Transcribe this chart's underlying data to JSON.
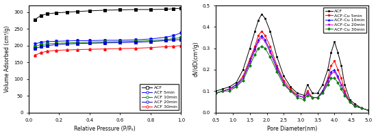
{
  "left_chart": {
    "xlabel": "Relative Pressure (P/Pₒ)",
    "ylabel": "Volume Adsorbed (cm³/g)",
    "xlim": [
      0.0,
      1.0
    ],
    "ylim": [
      0,
      320
    ],
    "yticks": [
      0,
      50,
      100,
      150,
      200,
      250,
      300
    ],
    "xticks": [
      0.0,
      0.2,
      0.4,
      0.6,
      0.8,
      1.0
    ],
    "series": [
      {
        "label": "ACF",
        "color": "black",
        "open_marker": "s",
        "closed_marker": "s",
        "x_ads": [
          0.04,
          0.08,
          0.12,
          0.18,
          0.25,
          0.32,
          0.4,
          0.5,
          0.6,
          0.7,
          0.8,
          0.9,
          0.95,
          1.0
        ],
        "y_ads": [
          278,
          290,
          295,
          298,
          300,
          302,
          304,
          306,
          307,
          308,
          308,
          309,
          310,
          312
        ],
        "x_des": [
          0.04,
          0.08,
          0.12,
          0.18,
          0.25,
          0.32,
          0.4,
          0.5,
          0.6,
          0.7,
          0.8,
          0.9,
          0.95,
          1.0
        ],
        "y_des": [
          278,
          290,
          295,
          298,
          300,
          302,
          304,
          306,
          307,
          308,
          308,
          309,
          310,
          312
        ]
      },
      {
        "label": "ACF 5min",
        "color": "blue",
        "open_marker": "o",
        "closed_marker": "v",
        "x_ads": [
          0.04,
          0.08,
          0.12,
          0.18,
          0.25,
          0.32,
          0.4,
          0.5,
          0.6,
          0.7,
          0.8,
          0.9,
          0.95,
          1.0
        ],
        "y_ads": [
          205,
          210,
          212,
          213,
          214,
          215,
          215,
          216,
          216,
          217,
          220,
          225,
          230,
          238
        ],
        "x_des": [
          0.04,
          0.08,
          0.12,
          0.18,
          0.25,
          0.32,
          0.4,
          0.5,
          0.6,
          0.7,
          0.8,
          0.9,
          0.95,
          1.0
        ],
        "y_des": [
          205,
          210,
          212,
          213,
          214,
          215,
          215,
          216,
          216,
          217,
          220,
          225,
          230,
          238
        ]
      },
      {
        "label": "ACF 10min",
        "color": "green",
        "open_marker": "o",
        "closed_marker": "s",
        "x_ads": [
          0.04,
          0.08,
          0.12,
          0.18,
          0.25,
          0.32,
          0.4,
          0.5,
          0.6,
          0.7,
          0.8,
          0.9,
          0.95,
          1.0
        ],
        "y_ads": [
          198,
          203,
          205,
          207,
          208,
          209,
          210,
          211,
          212,
          213,
          215,
          218,
          221,
          224
        ],
        "x_des": [
          0.04,
          0.08,
          0.12,
          0.18,
          0.25,
          0.32,
          0.4,
          0.5,
          0.6,
          0.7,
          0.8,
          0.9,
          0.95,
          1.0
        ],
        "y_des": [
          198,
          203,
          205,
          207,
          208,
          209,
          210,
          211,
          212,
          213,
          215,
          218,
          221,
          224
        ]
      },
      {
        "label": "ACF 20min",
        "color": "#0000cc",
        "open_marker": "o",
        "closed_marker": "s",
        "x_ads": [
          0.04,
          0.08,
          0.12,
          0.18,
          0.25,
          0.32,
          0.4,
          0.5,
          0.6,
          0.7,
          0.8,
          0.9,
          0.95,
          1.0
        ],
        "y_ads": [
          191,
          197,
          200,
          203,
          205,
          206,
          207,
          208,
          209,
          210,
          212,
          215,
          217,
          218
        ],
        "x_des": [
          0.04,
          0.08,
          0.12,
          0.18,
          0.25,
          0.32,
          0.4,
          0.5,
          0.6,
          0.7,
          0.8,
          0.9,
          0.95,
          1.0
        ],
        "y_des": [
          191,
          197,
          200,
          203,
          205,
          206,
          207,
          208,
          209,
          210,
          212,
          215,
          217,
          218
        ]
      },
      {
        "label": "ACF 30min",
        "color": "red",
        "open_marker": "o",
        "closed_marker": "^",
        "x_ads": [
          0.04,
          0.08,
          0.12,
          0.18,
          0.25,
          0.32,
          0.4,
          0.5,
          0.6,
          0.7,
          0.8,
          0.9,
          0.95,
          1.0
        ],
        "y_ads": [
          171,
          179,
          183,
          186,
          187,
          188,
          189,
          190,
          191,
          192,
          194,
          197,
          198,
          200
        ],
        "x_des": [
          0.04,
          0.08,
          0.12,
          0.18,
          0.25,
          0.32,
          0.4,
          0.5,
          0.6,
          0.7,
          0.8,
          0.9,
          0.95,
          1.0
        ],
        "y_des": [
          171,
          179,
          183,
          186,
          187,
          188,
          189,
          190,
          191,
          192,
          194,
          197,
          198,
          200
        ]
      }
    ]
  },
  "right_chart": {
    "xlabel": "Pore Diameter(nm)",
    "ylabel": "dV/dD(cm³/g)",
    "xlim": [
      0.5,
      5.0
    ],
    "ylim": [
      0.0,
      0.5
    ],
    "yticks": [
      0.0,
      0.1,
      0.2,
      0.3,
      0.4,
      0.5
    ],
    "xticks": [
      0.5,
      1.0,
      1.5,
      2.0,
      2.5,
      3.0,
      3.5,
      4.0,
      4.5,
      5.0
    ],
    "series": [
      {
        "label": "ACF",
        "color": "black",
        "marker": "s",
        "x": [
          0.5,
          0.7,
          0.9,
          1.1,
          1.3,
          1.5,
          1.65,
          1.75,
          1.85,
          1.95,
          2.1,
          2.3,
          2.5,
          2.7,
          2.9,
          3.1,
          3.2,
          3.35,
          3.5,
          3.65,
          3.8,
          3.9,
          4.0,
          4.1,
          4.2,
          4.3,
          4.45,
          4.6,
          4.8,
          5.0
        ],
        "y": [
          0.1,
          0.11,
          0.12,
          0.14,
          0.2,
          0.3,
          0.38,
          0.43,
          0.46,
          0.44,
          0.38,
          0.26,
          0.17,
          0.12,
          0.09,
          0.08,
          0.13,
          0.09,
          0.09,
          0.13,
          0.2,
          0.28,
          0.33,
          0.28,
          0.22,
          0.13,
          0.06,
          0.04,
          0.02,
          0.01
        ]
      },
      {
        "label": "ACF-Cu 5min",
        "color": "red",
        "marker": "o",
        "x": [
          0.5,
          0.7,
          0.9,
          1.1,
          1.3,
          1.5,
          1.65,
          1.75,
          1.85,
          1.95,
          2.1,
          2.3,
          2.5,
          2.7,
          2.9,
          3.1,
          3.2,
          3.35,
          3.5,
          3.65,
          3.8,
          3.9,
          4.0,
          4.1,
          4.2,
          4.3,
          4.45,
          4.6,
          4.8,
          5.0
        ],
        "y": [
          0.09,
          0.1,
          0.11,
          0.13,
          0.17,
          0.25,
          0.31,
          0.36,
          0.38,
          0.36,
          0.31,
          0.22,
          0.15,
          0.11,
          0.08,
          0.07,
          0.1,
          0.07,
          0.07,
          0.1,
          0.16,
          0.22,
          0.24,
          0.2,
          0.16,
          0.1,
          0.05,
          0.03,
          0.02,
          0.01
        ]
      },
      {
        "label": "ACF-Cu 10min",
        "color": "blue",
        "marker": "^",
        "x": [
          0.5,
          0.7,
          0.9,
          1.1,
          1.3,
          1.5,
          1.65,
          1.75,
          1.85,
          1.95,
          2.1,
          2.3,
          2.5,
          2.7,
          2.9,
          3.1,
          3.2,
          3.35,
          3.5,
          3.65,
          3.8,
          3.9,
          4.0,
          4.1,
          4.2,
          4.3,
          4.45,
          4.6,
          4.8,
          5.0
        ],
        "y": [
          0.09,
          0.1,
          0.11,
          0.13,
          0.16,
          0.24,
          0.3,
          0.34,
          0.36,
          0.34,
          0.29,
          0.21,
          0.14,
          0.1,
          0.08,
          0.07,
          0.09,
          0.07,
          0.07,
          0.1,
          0.15,
          0.19,
          0.2,
          0.17,
          0.13,
          0.09,
          0.05,
          0.03,
          0.02,
          0.01
        ]
      },
      {
        "label": "ACF-Cu 20min",
        "color": "#cc00cc",
        "marker": "v",
        "x": [
          0.5,
          0.7,
          0.9,
          1.1,
          1.3,
          1.5,
          1.65,
          1.75,
          1.85,
          1.95,
          2.1,
          2.3,
          2.5,
          2.7,
          2.9,
          3.1,
          3.2,
          3.35,
          3.5,
          3.65,
          3.8,
          3.9,
          4.0,
          4.1,
          4.2,
          4.3,
          4.45,
          4.6,
          4.8,
          5.0
        ],
        "y": [
          0.09,
          0.1,
          0.11,
          0.12,
          0.16,
          0.23,
          0.29,
          0.33,
          0.35,
          0.33,
          0.28,
          0.2,
          0.14,
          0.1,
          0.08,
          0.07,
          0.09,
          0.07,
          0.07,
          0.09,
          0.14,
          0.18,
          0.19,
          0.16,
          0.13,
          0.09,
          0.05,
          0.03,
          0.02,
          0.01
        ]
      },
      {
        "label": "ACF-Cu 30min",
        "color": "green",
        "marker": "D",
        "x": [
          0.5,
          0.7,
          0.9,
          1.1,
          1.3,
          1.5,
          1.65,
          1.75,
          1.85,
          1.95,
          2.1,
          2.3,
          2.5,
          2.7,
          2.9,
          3.1,
          3.2,
          3.35,
          3.5,
          3.65,
          3.8,
          3.9,
          4.0,
          4.1,
          4.2,
          4.3,
          4.45,
          4.6,
          4.8,
          5.0
        ],
        "y": [
          0.09,
          0.1,
          0.1,
          0.12,
          0.15,
          0.22,
          0.27,
          0.3,
          0.31,
          0.3,
          0.26,
          0.19,
          0.13,
          0.1,
          0.07,
          0.06,
          0.08,
          0.07,
          0.07,
          0.09,
          0.13,
          0.16,
          0.16,
          0.14,
          0.11,
          0.08,
          0.05,
          0.03,
          0.02,
          0.01
        ]
      }
    ]
  }
}
